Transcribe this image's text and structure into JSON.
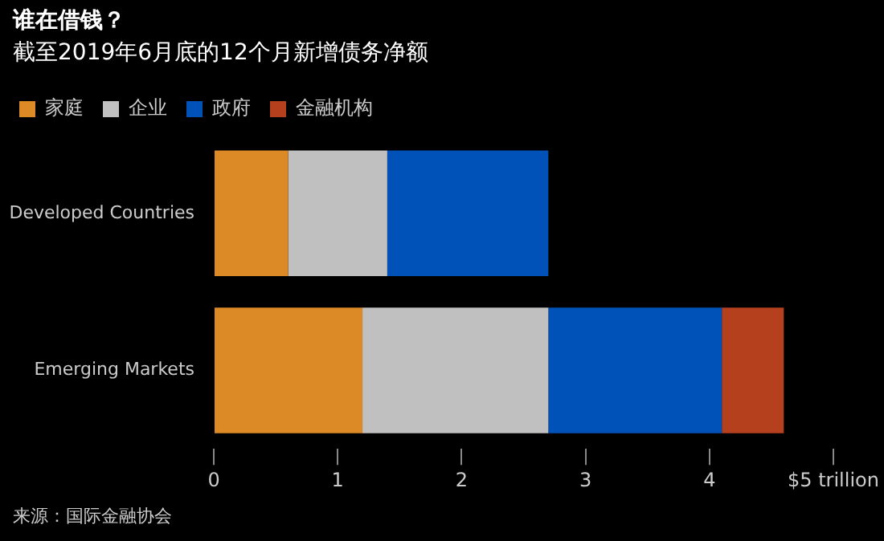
{
  "chart_data": {
    "type": "bar",
    "title": "谁在借钱？",
    "subtitle": "截至2019年6月底的12个月新增债务净额",
    "orientation": "horizontal",
    "stacked": true,
    "categories": [
      "Developed Countries",
      "Emerging Markets"
    ],
    "series": [
      {
        "name": "家庭",
        "color": "#dc8a26",
        "values": [
          0.6,
          1.2
        ]
      },
      {
        "name": "企业",
        "color": "#c0c0c0",
        "values": [
          0.8,
          1.5
        ]
      },
      {
        "name": "政府",
        "color": "#0052b8",
        "values": [
          1.3,
          1.4
        ]
      },
      {
        "name": "金融机构",
        "color": "#b5401e",
        "values": [
          null,
          0.5
        ]
      }
    ],
    "xlim": [
      0,
      5
    ],
    "xticks": [
      0,
      1,
      2,
      3,
      4,
      {
        "value": 5,
        "label": "$5 trillion"
      }
    ],
    "grid": false,
    "legend": "top left",
    "annotations": [
      "来源：国际金融协会"
    ]
  }
}
